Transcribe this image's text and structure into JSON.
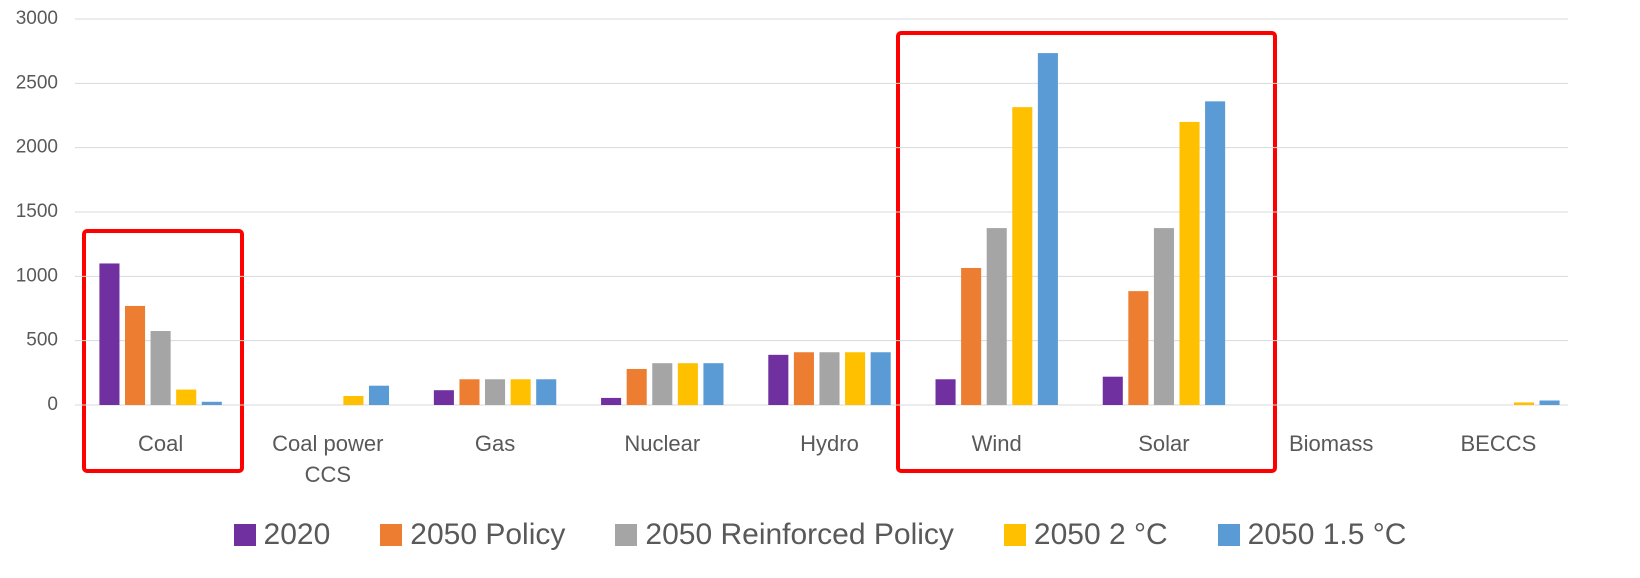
{
  "chart_data": {
    "type": "bar",
    "categories": [
      "Coal",
      "Coal power CCS",
      "Gas",
      "Nuclear",
      "Hydro",
      "Wind",
      "Solar",
      "Biomass",
      "BECCS"
    ],
    "series": [
      {
        "name": "2020",
        "color": "#7030a0",
        "values": [
          1100,
          0,
          115,
          55,
          390,
          200,
          220,
          0,
          0
        ]
      },
      {
        "name": "2050 Policy",
        "color": "#ed7d31",
        "values": [
          770,
          0,
          200,
          280,
          410,
          1065,
          885,
          0,
          0
        ]
      },
      {
        "name": "2050 Reinforced Policy",
        "color": "#a5a5a5",
        "values": [
          575,
          0,
          200,
          325,
          410,
          1375,
          1375,
          0,
          0
        ]
      },
      {
        "name": "2050 2 °C",
        "color": "#ffc000",
        "values": [
          120,
          70,
          200,
          325,
          410,
          2315,
          2200,
          0,
          20
        ]
      },
      {
        "name": "2050 1.5 °C",
        "color": "#5b9bd5",
        "values": [
          25,
          150,
          200,
          325,
          410,
          2735,
          2360,
          0,
          35
        ]
      }
    ],
    "ylim": [
      0,
      3000
    ],
    "yticks": [
      0,
      500,
      1000,
      1500,
      2000,
      2500,
      3000
    ],
    "grid": true,
    "legend": "bottom"
  }
}
